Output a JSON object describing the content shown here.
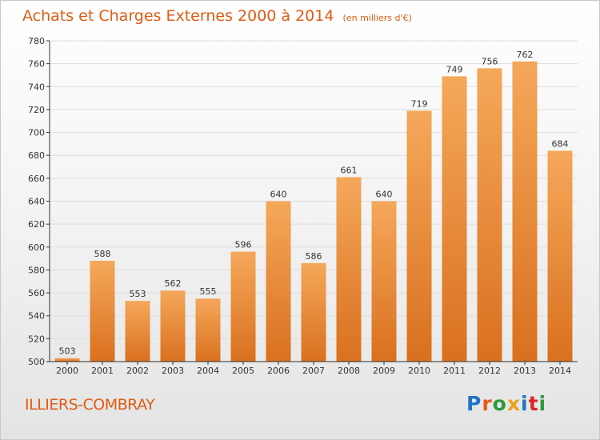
{
  "header": {
    "title": "Achats et Charges Externes 2000 à 2014",
    "unit": "(en milliers d'€)"
  },
  "footer": {
    "place": "ILLIERS-COMBRAY",
    "logo_text": "Proxiti",
    "logo_colors": [
      "#1e74c8",
      "#e8581c",
      "#2a9a3c",
      "#e8a31c",
      "#1e74c8",
      "#d62828",
      "#2a9a3c"
    ]
  },
  "colors": {
    "bar_top": "#f5a85a",
    "bar_bottom": "#d9701f",
    "axis": "#333333",
    "grid": "#dddddd",
    "title": "#e05b14"
  },
  "chart_data": {
    "type": "bar",
    "title": "Achats et Charges Externes 2000 à 2014",
    "subtitle": "(en milliers d'€)",
    "categories": [
      "2000",
      "2001",
      "2002",
      "2003",
      "2004",
      "2005",
      "2006",
      "2007",
      "2008",
      "2009",
      "2010",
      "2011",
      "2012",
      "2013",
      "2014"
    ],
    "values": [
      503,
      588,
      553,
      562,
      555,
      596,
      640,
      586,
      661,
      640,
      719,
      749,
      756,
      762,
      684
    ],
    "ylim": [
      500,
      780
    ],
    "yticks": [
      500,
      520,
      540,
      560,
      580,
      600,
      620,
      640,
      660,
      680,
      700,
      720,
      740,
      760,
      780
    ],
    "grid": true,
    "data_labels": true
  }
}
